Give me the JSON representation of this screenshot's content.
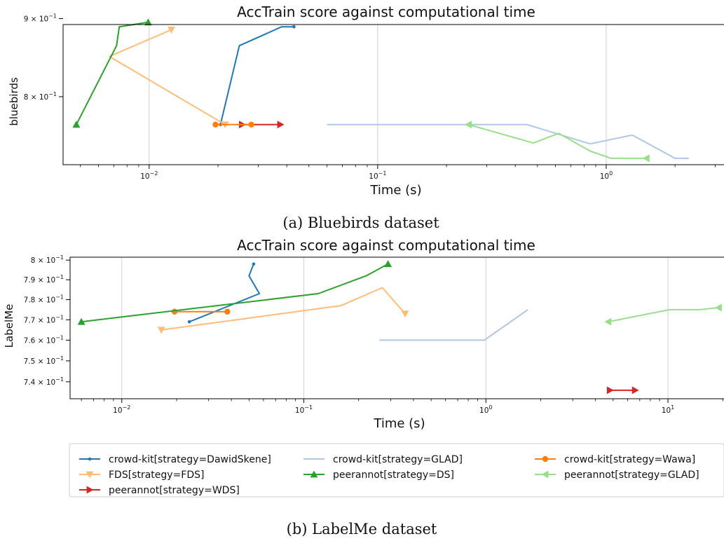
{
  "chart_data": [
    {
      "type": "line",
      "title": "AccTrain score against computational time",
      "xlabel": "Time (s)",
      "ylabel": "bluebirds",
      "caption": "(a) Bluebirds dataset",
      "xscale": "log",
      "yscale": "log",
      "xlim": [
        0.0042,
        3.3
      ],
      "ylim": [
        0.722,
        0.892
      ],
      "grid": "vertical major",
      "xticks": [
        {
          "value": 0.01,
          "base": "10",
          "exp": "−2"
        },
        {
          "value": 0.1,
          "base": "10",
          "exp": "−1"
        },
        {
          "value": 1,
          "base": "10",
          "exp": "0"
        }
      ],
      "yticks": [
        {
          "value": 0.8,
          "base": "8 × 10",
          "exp": "−1"
        },
        {
          "value": 0.9,
          "base": "9 × 10",
          "exp": "−1"
        }
      ],
      "series": [
        {
          "name": "crowd-kit[strategy=DawidSkene]",
          "x": [
            0.043,
            0.038,
            0.0248,
            0.0205
          ],
          "y": [
            0.889,
            0.889,
            0.864,
            0.767
          ]
        },
        {
          "name": "FDS[strategy=FDS]",
          "x": [
            0.0125,
            0.0067,
            0.0215
          ],
          "y": [
            0.885,
            0.85,
            0.767
          ]
        },
        {
          "name": "peerannot[strategy=WDS]",
          "x": [
            0.0255,
            0.0375
          ],
          "y": [
            0.767,
            0.767
          ]
        },
        {
          "name": "crowd-kit[strategy=Wawa]",
          "x": [
            0.0195,
            0.028
          ],
          "y": [
            0.767,
            0.767
          ]
        },
        {
          "name": "peerannot[strategy=DS]",
          "x": [
            0.0048,
            0.0072,
            0.0074,
            0.0099
          ],
          "y": [
            0.767,
            0.864,
            0.889,
            0.895
          ]
        },
        {
          "name": "crowd-kit[strategy=GLAD]",
          "x": [
            0.06,
            0.45,
            0.6,
            0.85,
            1.3,
            2.0,
            2.3
          ],
          "y": [
            0.767,
            0.767,
            0.757,
            0.745,
            0.755,
            0.729,
            0.729
          ]
        },
        {
          "name": "peerannot[strategy=GLAD]",
          "x": [
            0.25,
            0.48,
            0.62,
            0.85,
            1.05,
            1.5
          ],
          "y": [
            0.767,
            0.746,
            0.757,
            0.737,
            0.729,
            0.729
          ]
        }
      ]
    },
    {
      "type": "line",
      "title": "AccTrain score against computational time",
      "xlabel": "Time (s)",
      "ylabel": "LabelMe",
      "caption": "(b) LabelMe dataset",
      "xscale": "log",
      "yscale": "log",
      "xlim": [
        0.0052,
        20.5
      ],
      "ylim": [
        0.732,
        0.8015
      ],
      "grid": "vertical major",
      "xticks": [
        {
          "value": 0.01,
          "base": "10",
          "exp": "−2"
        },
        {
          "value": 0.1,
          "base": "10",
          "exp": "−1"
        },
        {
          "value": 1,
          "base": "10",
          "exp": "0"
        },
        {
          "value": 10,
          "base": "10",
          "exp": "1"
        }
      ],
      "yticks": [
        {
          "value": 0.74,
          "base": "7.4 × 10",
          "exp": "−1"
        },
        {
          "value": 0.75,
          "base": "7.5 × 10",
          "exp": "−1"
        },
        {
          "value": 0.76,
          "base": "7.6 × 10",
          "exp": "−1"
        },
        {
          "value": 0.77,
          "base": "7.7 × 10",
          "exp": "−1"
        },
        {
          "value": 0.78,
          "base": "7.8 × 10",
          "exp": "−1"
        },
        {
          "value": 0.79,
          "base": "7.9 × 10",
          "exp": "−1"
        },
        {
          "value": 0.8,
          "base": "8 × 10",
          "exp": "−1"
        }
      ],
      "series": [
        {
          "name": "crowd-kit[strategy=DawidSkene]",
          "x": [
            0.0235,
            0.057,
            0.05,
            0.053
          ],
          "y": [
            0.769,
            0.783,
            0.792,
            0.798
          ]
        },
        {
          "name": "FDS[strategy=FDS]",
          "x": [
            0.0165,
            0.16,
            0.27,
            0.36
          ],
          "y": [
            0.765,
            0.777,
            0.786,
            0.773
          ]
        },
        {
          "name": "peerannot[strategy=WDS]",
          "x": [
            4.8,
            6.6
          ],
          "y": [
            0.736,
            0.736
          ]
        },
        {
          "name": "crowd-kit[strategy=Wawa]",
          "x": [
            0.0195,
            0.0205,
            0.027,
            0.038
          ],
          "y": [
            0.774,
            0.774,
            0.774,
            0.774
          ]
        },
        {
          "name": "peerannot[strategy=DS]",
          "x": [
            0.006,
            0.12,
            0.22,
            0.29
          ],
          "y": [
            0.769,
            0.783,
            0.792,
            0.798
          ]
        },
        {
          "name": "crowd-kit[strategy=GLAD]",
          "x": [
            0.26,
            0.98,
            1.7
          ],
          "y": [
            0.76,
            0.76,
            0.775
          ]
        },
        {
          "name": "peerannot[strategy=GLAD]",
          "x": [
            4.7,
            10.2,
            15.0,
            19.0
          ],
          "y": [
            0.769,
            0.775,
            0.775,
            0.776
          ]
        }
      ]
    }
  ],
  "legend": {
    "placement": "below bottom chart",
    "columns": 3,
    "entries": [
      {
        "label": "crowd-kit[strategy=DawidSkene]",
        "color": "#1f77b4",
        "marker": "dot"
      },
      {
        "label": "crowd-kit[strategy=GLAD]",
        "color": "#aec7e8",
        "marker": "none"
      },
      {
        "label": "crowd-kit[strategy=Wawa]",
        "color": "#ff7f0e",
        "marker": "circle"
      },
      {
        "label": "FDS[strategy=FDS]",
        "color": "#ffbb78",
        "marker": "triangle-down"
      },
      {
        "label": "peerannot[strategy=DS]",
        "color": "#2ca02c",
        "marker": "triangle-up"
      },
      {
        "label": "peerannot[strategy=GLAD]",
        "color": "#98df8a",
        "marker": "triangle-left"
      },
      {
        "label": "peerannot[strategy=WDS]",
        "color": "#d62728",
        "marker": "triangle-right"
      }
    ]
  }
}
